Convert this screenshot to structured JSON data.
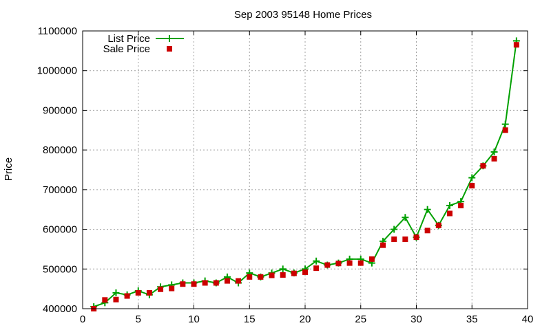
{
  "chart_data": {
    "type": "line",
    "title": "Sep 2003 95148 Home Prices",
    "xlabel": "",
    "ylabel": "Price",
    "xlim": [
      0,
      40
    ],
    "ylim": [
      400000,
      1100000
    ],
    "x_ticks": [
      "0",
      "5",
      "10",
      "15",
      "20",
      "25",
      "30",
      "35",
      "40"
    ],
    "y_ticks": [
      "400000",
      "500000",
      "600000",
      "700000",
      "800000",
      "900000",
      "1000000",
      "1100000"
    ],
    "grid": true,
    "legend_position": "top-left",
    "x": [
      1,
      2,
      3,
      4,
      5,
      6,
      7,
      8,
      9,
      10,
      11,
      12,
      13,
      14,
      15,
      16,
      17,
      18,
      19,
      20,
      21,
      22,
      23,
      24,
      25,
      26,
      27,
      28,
      29,
      30,
      31,
      32,
      33,
      34,
      35,
      36,
      37,
      38,
      39
    ],
    "series": [
      {
        "name": "List Price",
        "style": "linespoints",
        "color": "#00a000",
        "marker": "plus",
        "values": [
          405000,
          415000,
          440000,
          435000,
          445000,
          435000,
          455000,
          460000,
          465000,
          465000,
          470000,
          465000,
          480000,
          465000,
          490000,
          480000,
          490000,
          500000,
          490000,
          500000,
          520000,
          510000,
          515000,
          525000,
          525000,
          515000,
          570000,
          600000,
          630000,
          580000,
          650000,
          610000,
          660000,
          670000,
          730000,
          760000,
          795000,
          865000,
          1075000
        ]
      },
      {
        "name": "Sale Price",
        "style": "points",
        "color": "#cc0000",
        "marker": "square",
        "values": [
          400000,
          422000,
          423000,
          432000,
          440000,
          440000,
          449000,
          451000,
          462000,
          462000,
          465000,
          465000,
          470000,
          470000,
          480000,
          480000,
          484000,
          485000,
          489000,
          492000,
          502000,
          510000,
          514000,
          515000,
          515000,
          525000,
          560000,
          575000,
          575000,
          580000,
          597000,
          610000,
          640000,
          660000,
          710000,
          760000,
          778000,
          850000,
          1065000
        ]
      }
    ]
  }
}
